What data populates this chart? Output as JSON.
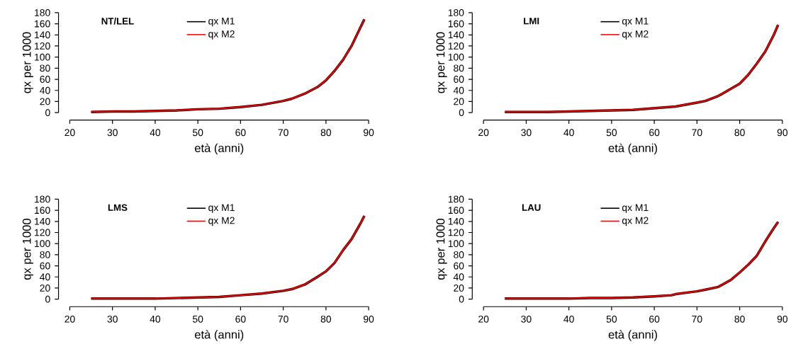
{
  "chart_data": [
    {
      "type": "line",
      "title": "NT/LEL",
      "xlabel": "età (anni)",
      "ylabel": "qx per 1000",
      "legend": "top",
      "xlim": [
        20,
        90
      ],
      "ylim": [
        0,
        180
      ],
      "xticks": [
        20,
        30,
        40,
        50,
        60,
        70,
        80,
        90
      ],
      "yticks": [
        0,
        20,
        40,
        60,
        80,
        100,
        120,
        140,
        160,
        180
      ],
      "x": [
        25,
        30,
        35,
        40,
        45,
        50,
        55,
        60,
        65,
        70,
        72,
        75,
        78,
        80,
        82,
        84,
        86,
        88,
        89
      ],
      "series": [
        {
          "name": "qx M1",
          "color": "#000000",
          "values": [
            1,
            2,
            2,
            3,
            4,
            6,
            7,
            10,
            14,
            21,
            25,
            34,
            46,
            58,
            75,
            95,
            120,
            152,
            168
          ]
        },
        {
          "name": "qx M2",
          "color": "#ff0000",
          "values": [
            1,
            2,
            2,
            3,
            4,
            6,
            7,
            10,
            14,
            21,
            25,
            34,
            46,
            58,
            75,
            95,
            120,
            152,
            168
          ]
        }
      ]
    },
    {
      "type": "line",
      "title": "LMI",
      "xlabel": "età (anni)",
      "ylabel": "qx per 1000",
      "legend": "top",
      "xlim": [
        20,
        90
      ],
      "ylim": [
        0,
        180
      ],
      "xticks": [
        20,
        30,
        40,
        50,
        60,
        70,
        80,
        90
      ],
      "yticks": [
        0,
        20,
        40,
        60,
        80,
        100,
        120,
        140,
        160,
        180
      ],
      "x": [
        25,
        30,
        35,
        40,
        45,
        50,
        55,
        60,
        65,
        70,
        72,
        75,
        78,
        80,
        82,
        84,
        86,
        88,
        89
      ],
      "series": [
        {
          "name": "qx M1",
          "color": "#000000",
          "values": [
            1,
            1,
            1,
            2,
            3,
            4,
            5,
            8,
            11,
            18,
            21,
            30,
            43,
            52,
            68,
            88,
            110,
            140,
            158
          ]
        },
        {
          "name": "qx M2",
          "color": "#ff0000",
          "values": [
            1,
            1,
            1,
            2,
            3,
            4,
            5,
            8,
            11,
            18,
            21,
            30,
            43,
            52,
            68,
            88,
            110,
            140,
            158
          ]
        }
      ]
    },
    {
      "type": "line",
      "title": "LMS",
      "xlabel": "età (anni)",
      "ylabel": "qx per 1000",
      "legend": "top",
      "xlim": [
        20,
        90
      ],
      "ylim": [
        0,
        180
      ],
      "xticks": [
        20,
        30,
        40,
        50,
        60,
        70,
        80,
        90
      ],
      "yticks": [
        0,
        20,
        40,
        60,
        80,
        100,
        120,
        140,
        160,
        180
      ],
      "x": [
        25,
        30,
        35,
        40,
        45,
        50,
        55,
        60,
        65,
        70,
        72,
        75,
        78,
        80,
        82,
        84,
        86,
        88,
        89
      ],
      "series": [
        {
          "name": "qx M1",
          "color": "#000000",
          "values": [
            1,
            1,
            1,
            1,
            2,
            3,
            4,
            7,
            10,
            15,
            18,
            26,
            40,
            50,
            65,
            88,
            108,
            135,
            150
          ]
        },
        {
          "name": "qx M2",
          "color": "#ff0000",
          "values": [
            1,
            1,
            1,
            1,
            2,
            3,
            4,
            7,
            10,
            15,
            18,
            26,
            40,
            50,
            65,
            88,
            108,
            135,
            150
          ]
        }
      ]
    },
    {
      "type": "line",
      "title": "LAU",
      "xlabel": "età (anni)",
      "ylabel": "qx per 1000",
      "legend": "top",
      "xlim": [
        20,
        90
      ],
      "ylim": [
        0,
        180
      ],
      "xticks": [
        20,
        30,
        40,
        50,
        60,
        70,
        80,
        90
      ],
      "yticks": [
        0,
        20,
        40,
        60,
        80,
        100,
        120,
        140,
        160,
        180
      ],
      "x": [
        25,
        30,
        35,
        40,
        45,
        50,
        55,
        60,
        64,
        65,
        70,
        72,
        75,
        78,
        80,
        82,
        84,
        86,
        88,
        89
      ],
      "series": [
        {
          "name": "qx M1",
          "color": "#000000",
          "values": [
            1,
            1,
            1,
            1,
            2,
            2,
            3,
            5,
            7,
            9,
            14,
            17,
            22,
            35,
            48,
            62,
            78,
            104,
            128,
            139
          ]
        },
        {
          "name": "qx M2",
          "color": "#ff0000",
          "values": [
            1,
            1,
            1,
            1,
            2,
            2,
            3,
            5,
            7,
            9,
            14,
            17,
            22,
            35,
            48,
            62,
            78,
            104,
            128,
            139
          ]
        }
      ]
    }
  ]
}
